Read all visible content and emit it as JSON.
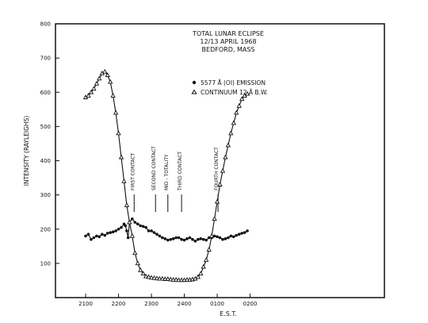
{
  "chart_data": {
    "type": "line",
    "title": "TOTAL LUNAR ECLIPSE",
    "subtitle": [
      "12/13 APRIL 1968",
      "BEDFORD, MASS"
    ],
    "xlabel": "E.S.T.",
    "ylabel": "INTENSITY (RAYLEIGHS)",
    "xlim": [
      -110,
      1090
    ],
    "ylim": [
      0,
      800
    ],
    "x_ticks": [
      {
        "x": 0,
        "label": "2100"
      },
      {
        "x": 120,
        "label": "2200"
      },
      {
        "x": 240,
        "label": "2300"
      },
      {
        "x": 360,
        "label": "2400"
      },
      {
        "x": 480,
        "label": "0100"
      },
      {
        "x": 600,
        "label": "0200"
      }
    ],
    "y_ticks": [
      100,
      200,
      300,
      400,
      500,
      600,
      700,
      800
    ],
    "legend_position": "top-right",
    "series": [
      {
        "name": "5577 Å (OI) EMISSION",
        "marker": "dot",
        "x": [
          0,
          10,
          20,
          30,
          40,
          50,
          60,
          70,
          80,
          90,
          100,
          110,
          120,
          130,
          140,
          145,
          150,
          155,
          160,
          170,
          180,
          190,
          200,
          210,
          220,
          230,
          240,
          250,
          260,
          270,
          280,
          290,
          300,
          310,
          320,
          330,
          340,
          350,
          360,
          370,
          380,
          390,
          400,
          410,
          420,
          430,
          440,
          450,
          460,
          470,
          480,
          490,
          500,
          510,
          520,
          530,
          540,
          550,
          560,
          570,
          580,
          590
        ],
        "y": [
          180,
          185,
          170,
          175,
          180,
          178,
          185,
          182,
          188,
          190,
          192,
          195,
          200,
          205,
          215,
          210,
          195,
          175,
          220,
          230,
          220,
          215,
          210,
          208,
          205,
          195,
          195,
          190,
          185,
          180,
          175,
          172,
          168,
          170,
          172,
          175,
          175,
          170,
          168,
          172,
          175,
          170,
          165,
          170,
          172,
          170,
          168,
          175,
          175,
          180,
          178,
          175,
          170,
          172,
          175,
          180,
          178,
          182,
          185,
          188,
          190,
          195
        ]
      },
      {
        "name": "CONTINUUM 12 Å B.W.",
        "marker": "triangle",
        "x": [
          0,
          10,
          20,
          30,
          40,
          50,
          60,
          70,
          80,
          90,
          100,
          110,
          120,
          130,
          140,
          150,
          160,
          170,
          180,
          190,
          200,
          210,
          220,
          230,
          240,
          250,
          260,
          270,
          280,
          290,
          300,
          310,
          320,
          330,
          340,
          350,
          360,
          370,
          380,
          390,
          400,
          410,
          420,
          430,
          440,
          450,
          460,
          470,
          480,
          490,
          500,
          510,
          520,
          530,
          540,
          550,
          560,
          570,
          580,
          590
        ],
        "y": [
          585,
          590,
          600,
          610,
          625,
          640,
          655,
          660,
          650,
          630,
          590,
          540,
          480,
          410,
          340,
          270,
          220,
          180,
          130,
          100,
          80,
          70,
          62,
          60,
          58,
          57,
          56,
          55,
          55,
          54,
          54,
          53,
          52,
          52,
          51,
          51,
          51,
          52,
          52,
          53,
          55,
          60,
          70,
          90,
          110,
          140,
          180,
          230,
          280,
          330,
          370,
          410,
          445,
          480,
          510,
          540,
          560,
          580,
          590,
          595
        ]
      }
    ],
    "annotations": [
      {
        "label": "FIRST CONTACT",
        "x": 177
      },
      {
        "label": "SECOND CONTACT",
        "x": 255
      },
      {
        "label": "MID - TOTALITY",
        "x": 300
      },
      {
        "label": "THIRD CONTACT",
        "x": 350
      },
      {
        "label": "FOURTH CONTACT",
        "x": 483
      }
    ]
  }
}
